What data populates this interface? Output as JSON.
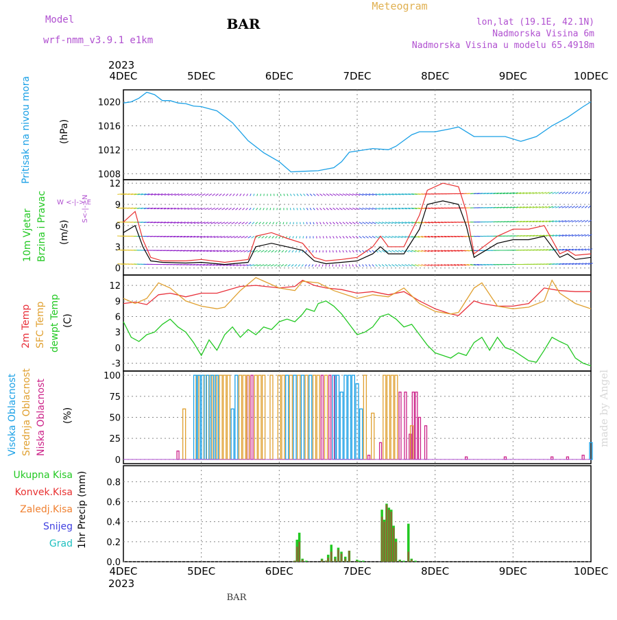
{
  "header": {
    "model_label": "Model",
    "model_name": "wrf-nmm_v3.9.1  e1km",
    "title": "Meteogram",
    "station": "BAR",
    "coords": "lon,lat (19.1E, 42.1N)",
    "elevation": "Nadmorska Visina 6m",
    "model_elevation": "Nadmorska Visina u modelu 65.4918m",
    "footer_station": "BAR",
    "watermark": "made by Angel"
  },
  "colors": {
    "pressure": "#1aa0e6",
    "temp2m": "#e8303a",
    "sfc_temp": "#e0a030",
    "dewpt": "#22c822",
    "wind_speed": "#000000",
    "wind_gust": "#e83030",
    "high_cloud": "#1aa0e6",
    "mid_cloud": "#e0a030",
    "low_cloud": "#cc2288",
    "precip_total": "#22c822",
    "precip_conv": "#e83030",
    "precip_frozen": "#f08030",
    "snow": "#4040e0",
    "graupel": "#20c0c0",
    "purple": "#b050d0"
  },
  "chart_data": {
    "x_axis": {
      "ticks": [
        "4DEC",
        "5DEC",
        "6DEC",
        "7DEC",
        "8DEC",
        "9DEC",
        "10DEC"
      ],
      "year": "2023"
    },
    "panels": [
      {
        "id": "pressure",
        "type": "line",
        "label": "Pritisak na nivou mora",
        "unit": "(hPa)",
        "ylim": [
          1007,
          1022
        ],
        "yticks": [
          1008,
          1012,
          1016,
          1020
        ],
        "x": [
          4.0,
          4.1,
          4.2,
          4.3,
          4.4,
          4.5,
          4.6,
          4.7,
          4.8,
          4.9,
          5.0,
          5.2,
          5.4,
          5.6,
          5.8,
          6.0,
          6.15,
          6.3,
          6.5,
          6.7,
          6.8,
          6.9,
          7.0,
          7.2,
          7.4,
          7.5,
          7.7,
          7.8,
          8.0,
          8.2,
          8.3,
          8.5,
          8.7,
          8.9,
          9.1,
          9.3,
          9.5,
          9.7,
          9.9,
          10.0
        ],
        "y": [
          1019.8,
          1020.0,
          1020.6,
          1021.6,
          1021.2,
          1020.2,
          1020.2,
          1019.8,
          1019.7,
          1019.3,
          1019.2,
          1018.5,
          1016.5,
          1013.5,
          1011.5,
          1010.0,
          1008.3,
          1008.4,
          1008.5,
          1009.0,
          1010.0,
          1011.6,
          1011.8,
          1012.2,
          1012.0,
          1012.6,
          1014.5,
          1015.0,
          1015.0,
          1015.5,
          1015.8,
          1014.2,
          1014.2,
          1014.2,
          1013.4,
          1014.2,
          1016.0,
          1017.4,
          1019.2,
          1020.0
        ]
      },
      {
        "id": "wind",
        "type": "line",
        "label": "10m Vjetar",
        "label2": "Brzina i Pravac",
        "unit": "(m/s)",
        "rose": "W  <-|->  E",
        "rose_v": "S<-|->N",
        "ylim": [
          -1,
          12.5
        ],
        "yticks": [
          0,
          3,
          6,
          9,
          12
        ],
        "x": [
          4.0,
          4.15,
          4.25,
          4.35,
          4.5,
          4.8,
          5.0,
          5.3,
          5.6,
          5.7,
          5.9,
          6.1,
          6.3,
          6.45,
          6.6,
          6.8,
          7.0,
          7.2,
          7.3,
          7.4,
          7.6,
          7.8,
          7.9,
          8.1,
          8.3,
          8.4,
          8.5,
          8.8,
          9.0,
          9.2,
          9.4,
          9.5,
          9.6,
          9.7,
          9.8,
          10.0
        ],
        "speed": [
          5.0,
          6.0,
          3.0,
          1.0,
          0.8,
          0.7,
          0.8,
          0.5,
          0.8,
          3.0,
          3.5,
          3.0,
          2.5,
          1.0,
          0.6,
          0.8,
          1.0,
          2.0,
          3.0,
          2.0,
          2.0,
          5.5,
          9.0,
          9.5,
          9.0,
          6.0,
          1.5,
          3.5,
          4.0,
          4.0,
          4.5,
          3.0,
          1.5,
          2.0,
          1.2,
          1.5
        ],
        "gust": [
          6.5,
          8.0,
          4.0,
          1.5,
          1.0,
          1.0,
          1.2,
          0.8,
          1.2,
          4.5,
          5.0,
          4.2,
          3.5,
          1.5,
          1.0,
          1.2,
          1.5,
          3.0,
          4.5,
          3.0,
          3.0,
          7.5,
          11.0,
          12.0,
          11.5,
          8.0,
          2.0,
          4.5,
          5.5,
          5.5,
          6.0,
          4.0,
          2.0,
          2.5,
          1.8,
          2.0
        ]
      },
      {
        "id": "temperature",
        "type": "line",
        "labels": [
          "2m Temp",
          "SFC Temp",
          "dewpt Temp"
        ],
        "unit": "(C)",
        "ylim": [
          -4.5,
          14
        ],
        "yticks": [
          -3,
          0,
          3,
          6,
          9,
          12
        ],
        "series": [
          {
            "name": "2m Temp",
            "x": [
              4.0,
              4.15,
              4.3,
              4.45,
              4.6,
              4.8,
              5.0,
              5.2,
              5.5,
              5.7,
              6.0,
              6.2,
              6.3,
              6.45,
              6.6,
              6.8,
              7.0,
              7.2,
              7.4,
              7.6,
              7.8,
              8.0,
              8.2,
              8.3,
              8.5,
              8.6,
              8.8,
              9.0,
              9.2,
              9.4,
              9.6,
              9.8,
              10.0
            ],
            "y": [
              8.5,
              8.8,
              8.3,
              10.2,
              10.5,
              9.8,
              10.5,
              10.5,
              11.8,
              12.0,
              11.5,
              11.8,
              13.0,
              12.0,
              11.5,
              11.2,
              10.5,
              10.8,
              10.2,
              10.8,
              9.0,
              7.5,
              6.5,
              6.2,
              9.0,
              8.5,
              8.0,
              8.0,
              8.5,
              11.5,
              11.0,
              10.8,
              10.8
            ]
          },
          {
            "name": "SFC Temp",
            "x": [
              4.0,
              4.15,
              4.3,
              4.45,
              4.6,
              4.8,
              5.0,
              5.2,
              5.3,
              5.5,
              5.7,
              6.0,
              6.2,
              6.3,
              6.5,
              6.7,
              6.9,
              7.0,
              7.2,
              7.4,
              7.6,
              7.8,
              8.0,
              8.2,
              8.3,
              8.5,
              8.6,
              8.8,
              9.0,
              9.2,
              9.4,
              9.5,
              9.6,
              9.8,
              10.0
            ],
            "y": [
              9.5,
              8.5,
              9.5,
              12.5,
              11.5,
              9.0,
              8.0,
              7.5,
              7.8,
              11.0,
              13.5,
              11.5,
              11.0,
              12.8,
              12.5,
              11.0,
              10.0,
              9.5,
              10.2,
              9.8,
              11.5,
              8.5,
              7.0,
              6.5,
              6.8,
              11.5,
              12.5,
              8.0,
              7.5,
              7.8,
              9.0,
              13.0,
              10.5,
              8.5,
              7.5
            ]
          },
          {
            "name": "dewpt Temp",
            "x": [
              4.0,
              4.1,
              4.2,
              4.3,
              4.4,
              4.5,
              4.6,
              4.7,
              4.8,
              4.9,
              5.0,
              5.1,
              5.2,
              5.3,
              5.4,
              5.5,
              5.6,
              5.7,
              5.8,
              5.9,
              6.0,
              6.1,
              6.2,
              6.3,
              6.35,
              6.45,
              6.5,
              6.6,
              6.7,
              6.8,
              6.9,
              7.0,
              7.1,
              7.2,
              7.3,
              7.4,
              7.5,
              7.6,
              7.7,
              7.8,
              7.9,
              8.0,
              8.1,
              8.2,
              8.3,
              8.4,
              8.5,
              8.6,
              8.7,
              8.8,
              8.9,
              9.0,
              9.1,
              9.2,
              9.3,
              9.4,
              9.5,
              9.6,
              9.7,
              9.8,
              9.9,
              10.0
            ],
            "y": [
              5.0,
              2.0,
              1.2,
              2.5,
              3.0,
              4.5,
              5.5,
              4.0,
              3.0,
              1.0,
              -1.5,
              1.5,
              -0.5,
              2.5,
              4.0,
              2.0,
              3.5,
              2.5,
              4.0,
              3.5,
              5.0,
              5.5,
              5.0,
              6.5,
              7.5,
              7.0,
              8.5,
              9.0,
              8.0,
              6.5,
              4.5,
              2.5,
              3.0,
              4.0,
              6.0,
              6.5,
              5.5,
              4.0,
              4.5,
              2.5,
              0.5,
              -1.0,
              -1.5,
              -2.0,
              -1.0,
              -1.5,
              1.0,
              2.0,
              -0.5,
              2.0,
              0.0,
              -0.5,
              -1.5,
              -2.5,
              -2.8,
              -0.5,
              2.0,
              1.2,
              0.5,
              -2.0,
              -3.0,
              -3.5
            ]
          }
        ]
      },
      {
        "id": "clouds",
        "type": "bar",
        "labels": [
          "Visoka Oblacnost",
          "Srednja Oblacnost",
          "Niska Oblacnost"
        ],
        "unit": "(%)",
        "ylim": [
          -5,
          105
        ],
        "yticks": [
          0,
          25,
          50,
          75,
          100
        ],
        "high": {
          "x": [
            4.92,
            4.97,
            5.02,
            5.08,
            5.14,
            5.2,
            5.4,
            5.45,
            6.1,
            6.2,
            6.3,
            6.4,
            6.7,
            6.75,
            6.8,
            6.85,
            6.9,
            6.95,
            7.0,
            7.05,
            10.0
          ],
          "v": [
            100,
            100,
            100,
            100,
            100,
            100,
            60,
            100,
            100,
            100,
            100,
            100,
            100,
            100,
            80,
            100,
            100,
            100,
            90,
            60,
            20
          ]
        },
        "mid": {
          "x": [
            4.78,
            4.95,
            5.05,
            5.12,
            5.18,
            5.25,
            5.3,
            5.35,
            5.5,
            5.55,
            5.6,
            5.7,
            5.75,
            5.8,
            5.9,
            6.0,
            6.05,
            6.15,
            6.25,
            6.35,
            6.45,
            6.5,
            6.6,
            7.1,
            7.2,
            7.35,
            7.4,
            7.45,
            7.5,
            7.7
          ],
          "v": [
            60,
            100,
            100,
            100,
            100,
            100,
            100,
            100,
            100,
            100,
            100,
            100,
            100,
            100,
            100,
            100,
            100,
            100,
            100,
            100,
            100,
            100,
            100,
            100,
            55,
            100,
            100,
            100,
            100,
            40
          ]
        },
        "low": {
          "x": [
            4.7,
            5.6,
            5.65,
            6.55,
            6.65,
            6.72,
            7.15,
            7.3,
            7.55,
            7.62,
            7.68,
            7.72,
            7.76,
            7.8,
            7.88,
            8.4,
            8.9,
            9.5,
            9.7,
            9.9
          ],
          "v": [
            10,
            100,
            100,
            100,
            100,
            100,
            5,
            20,
            80,
            80,
            30,
            80,
            80,
            50,
            40,
            3,
            3,
            3,
            3,
            5
          ]
        }
      },
      {
        "id": "precip",
        "type": "bar",
        "labels": [
          "Ukupna Kisa",
          "Konvek.Kisa",
          "Zaledj.Kisa",
          "Snijeg",
          "Grad"
        ],
        "unit": "1hr Precip (mm)",
        "ylim": [
          0,
          0.96
        ],
        "yticks": [
          0,
          0.2,
          0.4,
          0.6,
          0.8
        ],
        "x": [
          6.2,
          6.23,
          6.26,
          6.3,
          6.35,
          6.55,
          6.6,
          6.63,
          6.67,
          6.72,
          6.76,
          6.8,
          6.85,
          6.9,
          7.0,
          7.03,
          7.08,
          7.32,
          7.35,
          7.38,
          7.41,
          7.44,
          7.47,
          7.5,
          7.55,
          7.6,
          7.66,
          7.7,
          7.75
        ],
        "total": [
          0.01,
          0.22,
          0.29,
          0.03,
          0.01,
          0.03,
          0.01,
          0.07,
          0.17,
          0.05,
          0.14,
          0.1,
          0.05,
          0.11,
          0.02,
          0.01,
          0.01,
          0.52,
          0.42,
          0.58,
          0.54,
          0.52,
          0.36,
          0.23,
          0.02,
          0.01,
          0.38,
          0.03,
          0.01
        ],
        "conv": [
          0.01,
          0.15,
          0.2,
          0.02,
          0.0,
          0.02,
          0.01,
          0.04,
          0.1,
          0.03,
          0.12,
          0.08,
          0.03,
          0.11,
          0.01,
          0.0,
          0.0,
          0.45,
          0.4,
          0.57,
          0.52,
          0.5,
          0.34,
          0.2,
          0.01,
          0.0,
          0.1,
          0.02,
          0.0
        ]
      }
    ]
  }
}
